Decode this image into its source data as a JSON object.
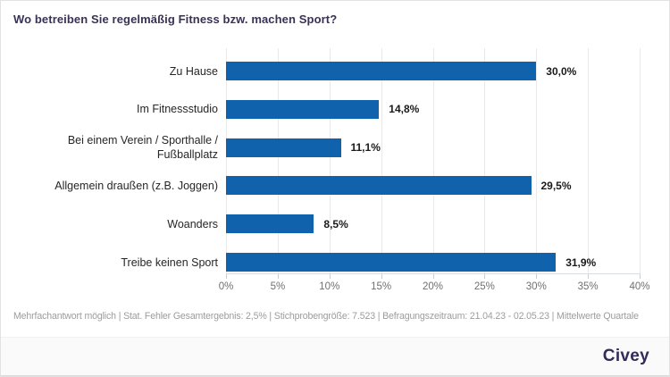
{
  "header": {
    "title": "Wo betreiben Sie regelmäßig Fitness bzw. machen Sport?"
  },
  "chart_data": {
    "type": "bar",
    "orientation": "horizontal",
    "title": "Wo betreiben Sie regelmäßig Fitness bzw. machen Sport?",
    "categories": [
      "Zu Hause",
      "Im Fitnessstudio",
      "Bei einem Verein / Sporthalle / Fußballplatz",
      "Allgemein draußen (z.B. Joggen)",
      "Woanders",
      "Treibe keinen Sport"
    ],
    "values": [
      30.0,
      14.8,
      11.1,
      29.5,
      8.5,
      31.9
    ],
    "value_labels": [
      "30,0%",
      "14,8%",
      "11,1%",
      "29,5%",
      "8,5%",
      "31,9%"
    ],
    "xlim": [
      0,
      40
    ],
    "x_ticks": [
      0,
      5,
      10,
      15,
      20,
      25,
      30,
      35,
      40
    ],
    "x_tick_labels": [
      "0%",
      "5%",
      "10%",
      "15%",
      "20%",
      "25%",
      "30%",
      "35%",
      "40%"
    ],
    "grid": "vertical",
    "legend": "none",
    "bar_color": "#1162ac"
  },
  "footer": {
    "text": "Mehrfachantwort möglich | Stat. Fehler Gesamtergebnis: 2,5% | Stichprobengröße: 7.523 | Befragungszeitraum: 21.04.23 - 02.05.23 | Mittelwerte Quartale"
  },
  "branding": {
    "logo_text": "Civey"
  },
  "colors": {
    "bar": "#1162ac",
    "title": "#3a3156",
    "axis_text": "#707070",
    "footnote_text": "#9c9c9c",
    "logo": "#322c56",
    "band_bg": "#fafafa"
  }
}
